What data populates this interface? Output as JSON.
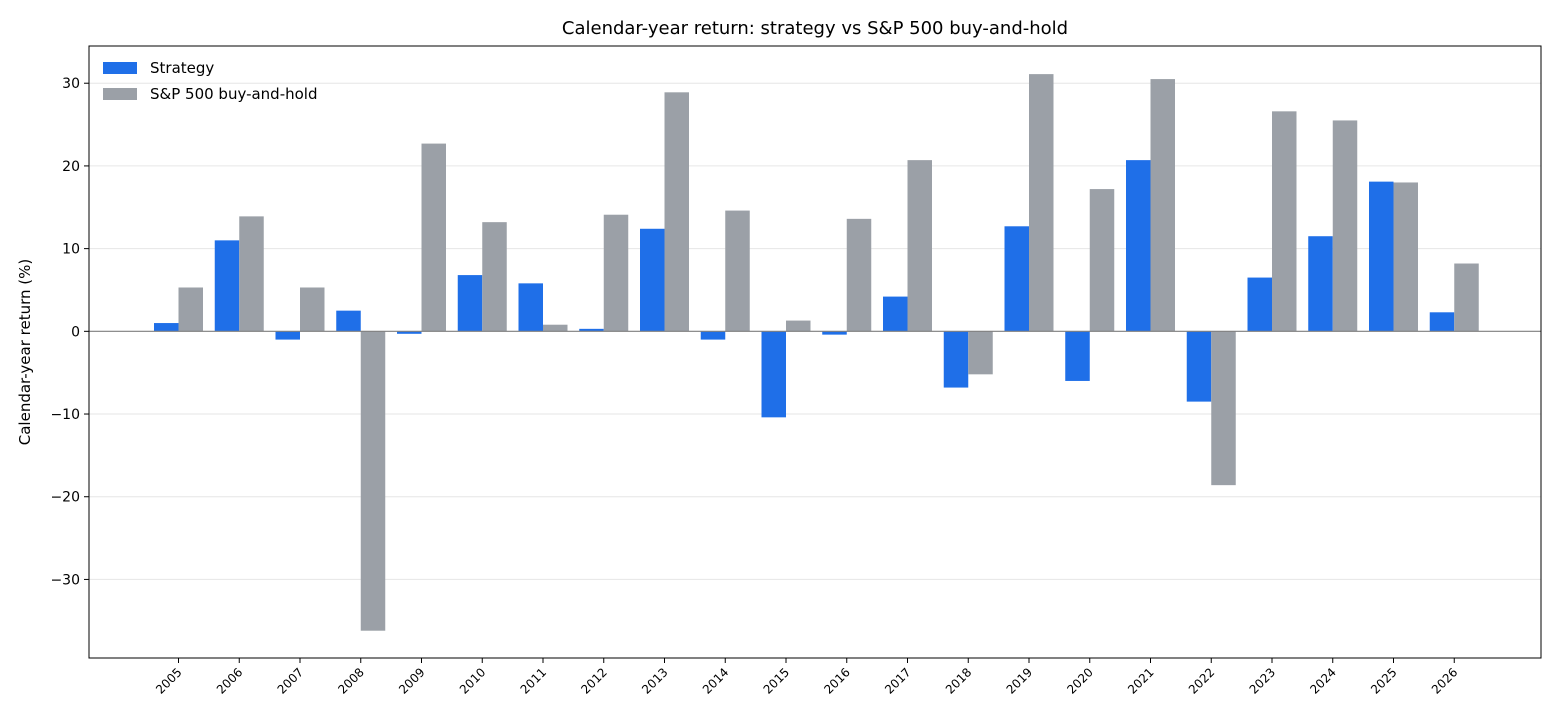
{
  "chart_data": {
    "type": "bar",
    "title": "Calendar-year return: strategy vs S&P 500 buy-and-hold",
    "xlabel": "",
    "ylabel": "Calendar-year return (%)",
    "ylim": [
      -39.5,
      34.5
    ],
    "yticks": [
      -30,
      -20,
      -10,
      0,
      10,
      20,
      30
    ],
    "ytick_labels": [
      "−30",
      "−20",
      "−10",
      "0",
      "10",
      "20",
      "30"
    ],
    "grid": true,
    "legend_position": "top-left",
    "categories": [
      "2005",
      "2006",
      "2007",
      "2008",
      "2009",
      "2010",
      "2011",
      "2012",
      "2013",
      "2014",
      "2015",
      "2016",
      "2017",
      "2018",
      "2019",
      "2020",
      "2021",
      "2022",
      "2023",
      "2024",
      "2025",
      "2026"
    ],
    "series": [
      {
        "name": "Strategy",
        "color": "#1f6fe8",
        "values": [
          1.0,
          11.0,
          -1.0,
          2.5,
          -0.3,
          6.8,
          5.8,
          0.3,
          12.4,
          -1.0,
          -10.4,
          -0.4,
          4.2,
          -6.8,
          12.7,
          -6.0,
          20.7,
          -8.5,
          6.5,
          11.5,
          18.1,
          2.3
        ]
      },
      {
        "name": "S&P 500 buy-and-hold",
        "color": "#9ba0a7",
        "values": [
          5.3,
          13.9,
          5.3,
          -36.2,
          22.7,
          13.2,
          0.8,
          14.1,
          28.9,
          14.6,
          1.3,
          13.6,
          20.7,
          -5.2,
          31.1,
          17.2,
          30.5,
          -18.6,
          26.6,
          25.5,
          18.0,
          8.2
        ]
      }
    ]
  }
}
